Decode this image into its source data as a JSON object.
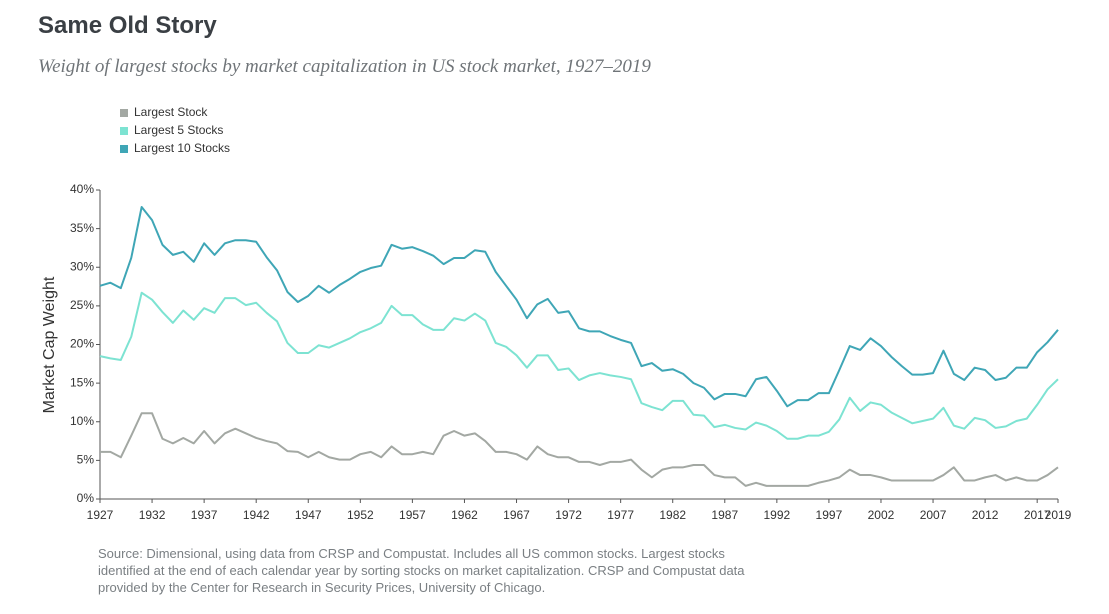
{
  "chart_data": {
    "type": "line",
    "title": "Same Old Story",
    "subtitle": "Weight of largest stocks by market capitalization in US stock market, 1927–2019",
    "y_label": "Market Cap Weight",
    "source": [
      "Source: Dimensional, using data from CRSP and Compustat. Includes all US common stocks. Largest stocks",
      "identified at the end of each calendar year by sorting stocks on market capitalization. CRSP and Compustat data",
      "provided by the Center for Research in Security Prices, University of Chicago."
    ],
    "legend": "top-left",
    "x": [
      1927,
      1928,
      1929,
      1930,
      1931,
      1932,
      1933,
      1934,
      1935,
      1936,
      1937,
      1938,
      1939,
      1940,
      1941,
      1942,
      1943,
      1944,
      1945,
      1946,
      1947,
      1948,
      1949,
      1950,
      1951,
      1952,
      1953,
      1954,
      1955,
      1956,
      1957,
      1958,
      1959,
      1960,
      1961,
      1962,
      1963,
      1964,
      1965,
      1966,
      1967,
      1968,
      1969,
      1970,
      1971,
      1972,
      1973,
      1974,
      1975,
      1976,
      1977,
      1978,
      1979,
      1980,
      1981,
      1982,
      1983,
      1984,
      1985,
      1986,
      1987,
      1988,
      1989,
      1990,
      1991,
      1992,
      1993,
      1994,
      1995,
      1996,
      1997,
      1998,
      1999,
      2000,
      2001,
      2002,
      2003,
      2004,
      2005,
      2006,
      2007,
      2008,
      2009,
      2010,
      2011,
      2012,
      2013,
      2014,
      2015,
      2016,
      2017,
      2018,
      2019
    ],
    "xlim": [
      1927,
      2019
    ],
    "xticks": [
      1927,
      1932,
      1937,
      1942,
      1947,
      1952,
      1957,
      1962,
      1967,
      1972,
      1977,
      1982,
      1987,
      1992,
      1997,
      2002,
      2007,
      2012,
      2017,
      2019
    ],
    "ylim": [
      0,
      40
    ],
    "yticks": [
      {
        "value": 0,
        "label": "0%"
      },
      {
        "value": 5,
        "label": "5%"
      },
      {
        "value": 10,
        "label": "10%"
      },
      {
        "value": 15,
        "label": "15%"
      },
      {
        "value": 20,
        "label": "20%"
      },
      {
        "value": 25,
        "label": "25%"
      },
      {
        "value": 30,
        "label": "30%"
      },
      {
        "value": 35,
        "label": "35%"
      },
      {
        "value": 40,
        "label": "40%"
      }
    ],
    "series": [
      {
        "name": "Largest Stock",
        "color": "#a3a8a3",
        "values": [
          6.1,
          6.1,
          5.4,
          8.2,
          11.1,
          11.1,
          7.8,
          7.2,
          7.9,
          7.2,
          8.8,
          7.2,
          8.5,
          9.1,
          8.5,
          7.9,
          7.5,
          7.2,
          6.2,
          6.1,
          5.4,
          6.1,
          5.4,
          5.1,
          5.1,
          5.8,
          6.1,
          5.4,
          6.8,
          5.8,
          5.8,
          6.1,
          5.8,
          8.2,
          8.8,
          8.2,
          8.5,
          7.5,
          6.1,
          6.1,
          5.8,
          5.1,
          6.8,
          5.8,
          5.4,
          5.4,
          4.8,
          4.8,
          4.4,
          4.8,
          4.8,
          5.1,
          3.8,
          2.8,
          3.8,
          4.1,
          4.1,
          4.4,
          4.4,
          3.1,
          2.8,
          2.8,
          1.7,
          2.1,
          1.7,
          1.7,
          1.7,
          1.7,
          1.7,
          2.1,
          2.4,
          2.8,
          3.8,
          3.1,
          3.1,
          2.8,
          2.4,
          2.4,
          2.4,
          2.4,
          2.4,
          3.1,
          4.1,
          2.4,
          2.4,
          2.8,
          3.1,
          2.4,
          2.8,
          2.4,
          2.4,
          3.1,
          4.1
        ]
      },
      {
        "name": "Largest 5 Stocks",
        "color": "#7de3d2",
        "values": [
          18.5,
          18.2,
          18,
          21,
          26.7,
          25.8,
          24.2,
          22.8,
          24.4,
          23.2,
          24.7,
          24.1,
          26,
          26,
          25.1,
          25.4,
          24.1,
          23,
          20.2,
          18.9,
          18.9,
          19.9,
          19.6,
          20.2,
          20.8,
          21.6,
          22.1,
          22.8,
          25,
          23.8,
          23.8,
          22.6,
          21.9,
          21.9,
          23.4,
          23.1,
          24,
          23.1,
          20.2,
          19.7,
          18.6,
          17,
          18.6,
          18.6,
          16.7,
          16.9,
          15.4,
          16,
          16.3,
          16,
          15.8,
          15.5,
          12.4,
          11.9,
          11.5,
          12.7,
          12.7,
          10.9,
          10.8,
          9.3,
          9.6,
          9.2,
          9,
          9.9,
          9.5,
          8.8,
          7.8,
          7.8,
          8.2,
          8.2,
          8.7,
          10.3,
          13.1,
          11.4,
          12.5,
          12.2,
          11.2,
          10.5,
          9.8,
          10.1,
          10.4,
          11.8,
          9.5,
          9.1,
          10.5,
          10.2,
          9.2,
          9.4,
          10.1,
          10.4,
          12.2,
          14.2,
          15.5
        ]
      },
      {
        "name": "Largest 10 Stocks",
        "color": "#3fa6b6",
        "values": [
          27.6,
          28,
          27.3,
          31.2,
          37.8,
          36.1,
          32.9,
          31.6,
          32,
          30.7,
          33.1,
          31.6,
          33.1,
          33.5,
          33.5,
          33.3,
          31.3,
          29.6,
          26.8,
          25.5,
          26.3,
          27.6,
          26.7,
          27.7,
          28.5,
          29.4,
          29.9,
          30.2,
          32.9,
          32.4,
          32.6,
          32.1,
          31.5,
          30.4,
          31.2,
          31.2,
          32.2,
          32,
          29.4,
          27.6,
          25.8,
          23.4,
          25.2,
          25.9,
          24.1,
          24.3,
          22.1,
          21.7,
          21.7,
          21.1,
          20.6,
          20.2,
          17.2,
          17.6,
          16.6,
          16.8,
          16.2,
          15,
          14.4,
          12.9,
          13.6,
          13.6,
          13.3,
          15.5,
          15.8,
          14,
          12,
          12.8,
          12.8,
          13.7,
          13.7,
          16.7,
          19.8,
          19.3,
          20.8,
          19.8,
          18.4,
          17.2,
          16.1,
          16.1,
          16.3,
          19.2,
          16.2,
          15.4,
          17,
          16.7,
          15.4,
          15.7,
          17,
          17,
          19,
          20.3,
          21.9
        ]
      }
    ]
  }
}
